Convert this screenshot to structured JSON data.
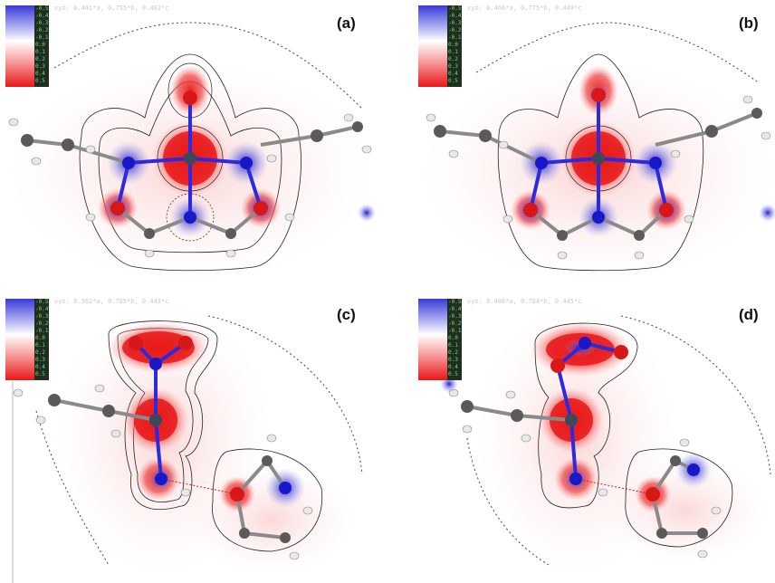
{
  "panels": [
    {
      "label": "(a)",
      "coords": "xyz: 0.441*a, 0.755*b, 0.402*c"
    },
    {
      "label": "(b)",
      "coords": "xyz: 0.466*a, 0.775*b, 0.449*c"
    },
    {
      "label": "(c)",
      "coords": "xyz: 0.362*a, 0.785*b, 0.443*c"
    },
    {
      "label": "(d)",
      "coords": "xyz: 0.406*a, 0.784*b, 0.445*c"
    }
  ],
  "legend": {
    "ticks": [
      "-0.5",
      "-0.4",
      "-0.3",
      "-0.2",
      "-0.1",
      "0.0",
      "0.1",
      "0.2",
      "0.3",
      "0.4",
      "0.5"
    ],
    "colors": {
      "negative": "#3a3ad8",
      "zero": "#ffffff",
      "positive": "#e81818"
    }
  }
}
